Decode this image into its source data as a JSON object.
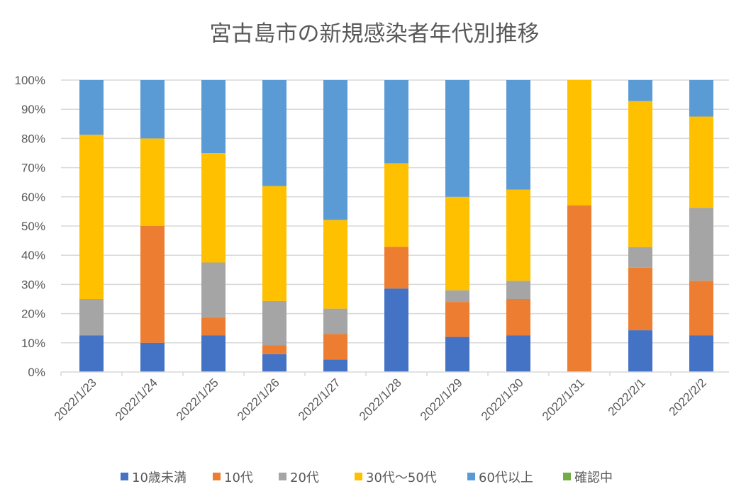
{
  "chart_data": {
    "type": "bar",
    "stacked": "percent",
    "title": "宮古島市の新規感染者年代別推移",
    "xlabel": "",
    "ylabel": "",
    "ylim": [
      0,
      100
    ],
    "yticks": [
      "0%",
      "10%",
      "20%",
      "30%",
      "40%",
      "50%",
      "60%",
      "70%",
      "80%",
      "90%",
      "100%"
    ],
    "grid": true,
    "legend_position": "bottom",
    "categories": [
      "2022/1/23",
      "2022/1/24",
      "2022/1/25",
      "2022/1/26",
      "2022/1/27",
      "2022/1/28",
      "2022/1/29",
      "2022/1/30",
      "2022/1/31",
      "2022/2/1",
      "2022/2/2"
    ],
    "series": [
      {
        "name": "10歳未満",
        "color": "#4472c4",
        "values": [
          12.5,
          10,
          12.5,
          6.1,
          4.3,
          28.6,
          12,
          12.5,
          0,
          14.3,
          12.5
        ]
      },
      {
        "name": "10代",
        "color": "#ed7d31",
        "values": [
          0,
          40,
          6.25,
          3.0,
          8.7,
          14.3,
          12,
          12.5,
          57.1,
          21.4,
          18.75
        ]
      },
      {
        "name": "20代",
        "color": "#a5a5a5",
        "values": [
          12.5,
          0,
          18.75,
          15.2,
          8.7,
          0,
          4,
          6.25,
          0,
          7.1,
          25
        ]
      },
      {
        "name": "30代〜50代",
        "color": "#ffc000",
        "values": [
          56.25,
          30,
          37.5,
          39.4,
          30.4,
          28.6,
          32,
          31.25,
          42.9,
          50,
          31.25
        ]
      },
      {
        "name": "60代以上",
        "color": "#5b9bd5",
        "values": [
          18.75,
          20,
          25,
          36.3,
          47.9,
          28.5,
          40,
          37.5,
          0,
          7.2,
          12.5
        ]
      },
      {
        "name": "確認中",
        "color": "#70ad47",
        "values": [
          0,
          0,
          0,
          0,
          0,
          0,
          0,
          0,
          0,
          0,
          0
        ]
      }
    ]
  }
}
